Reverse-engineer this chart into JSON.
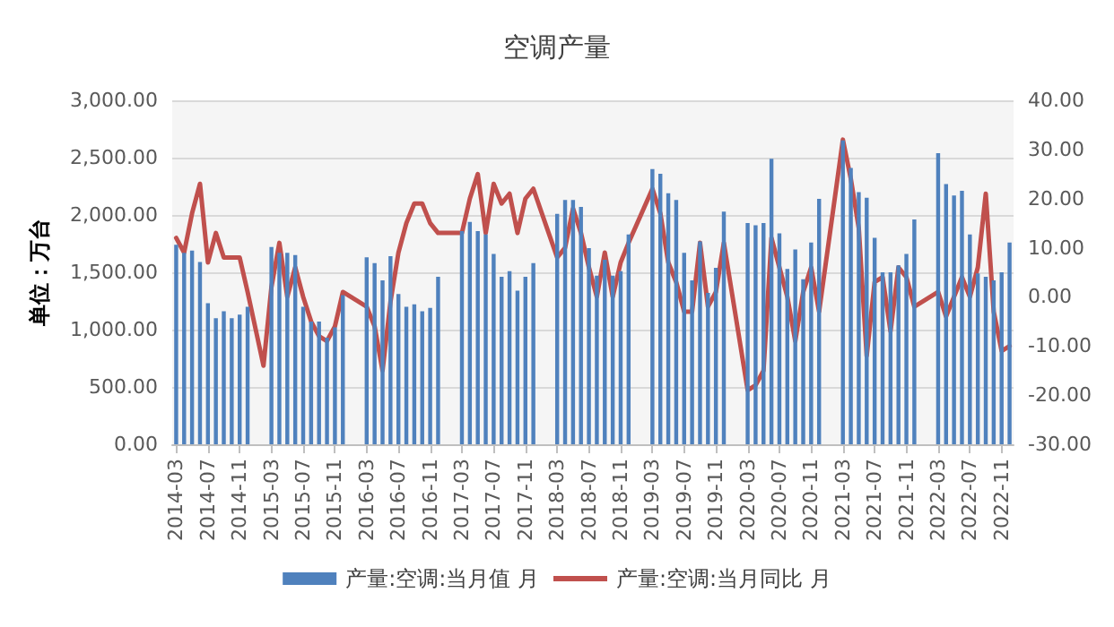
{
  "chart_data": {
    "type": "bar",
    "title": "空调产量",
    "ylabel": "单位：万台",
    "categories": [
      "2014-03",
      null,
      null,
      null,
      "2014-07",
      null,
      null,
      null,
      "2014-11",
      null,
      null,
      null,
      "2015-03",
      null,
      null,
      null,
      "2015-07",
      null,
      null,
      null,
      "2015-11",
      null,
      null,
      null,
      "2016-03",
      null,
      null,
      null,
      "2016-07",
      null,
      null,
      null,
      "2016-11",
      null,
      null,
      null,
      "2017-03",
      null,
      null,
      null,
      "2017-07",
      null,
      null,
      null,
      "2017-11",
      null,
      null,
      null,
      "2018-03",
      null,
      null,
      null,
      "2018-07",
      null,
      null,
      null,
      "2018-11",
      null,
      null,
      null,
      "2019-03",
      null,
      null,
      null,
      "2019-07",
      null,
      null,
      null,
      "2019-11",
      null,
      null,
      null,
      "2020-03",
      null,
      null,
      null,
      "2020-07",
      null,
      null,
      null,
      "2020-11",
      null,
      null,
      null,
      "2021-03",
      null,
      null,
      null,
      "2021-07",
      null,
      null,
      null,
      "2021-11",
      null,
      null,
      null,
      "2022-03",
      null,
      null,
      null,
      "2022-07",
      null,
      null,
      null,
      "2022-11",
      null
    ],
    "series": [
      {
        "name": "产量:空调:当月值 月",
        "color": "#4f81bd",
        "values": [
          1740,
          1670,
          1690,
          1590,
          1230,
          1100,
          1160,
          1100,
          1130,
          1200,
          null,
          null,
          1720,
          1670,
          1670,
          1650,
          1200,
          1070,
          1070,
          930,
          1020,
          1300,
          null,
          null,
          1630,
          1580,
          1430,
          1640,
          1310,
          1200,
          1220,
          1160,
          1190,
          1460,
          null,
          null,
          1860,
          1940,
          1860,
          1830,
          1660,
          1460,
          1510,
          1340,
          1460,
          1580,
          null,
          null,
          2010,
          2130,
          2130,
          2070,
          1710,
          1470,
          1610,
          1470,
          1510,
          1830,
          null,
          null,
          2400,
          2360,
          2190,
          2130,
          1670,
          1430,
          1770,
          1320,
          1540,
          2030,
          null,
          null,
          1930,
          1910,
          1930,
          2490,
          1840,
          1530,
          1700,
          1440,
          1760,
          2140,
          null,
          null,
          2650,
          2410,
          2200,
          2150,
          1800,
          1500,
          1500,
          1560,
          1660,
          1960,
          null,
          null,
          2540,
          2270,
          2170,
          2210,
          1830,
          1490,
          1460,
          1430,
          1500,
          1760
        ]
      },
      {
        "name": "产量:空调:当月同比 月",
        "type": "line",
        "axis": "y2",
        "color": "#c0504d",
        "values": [
          12,
          9,
          17,
          23,
          7,
          13,
          8,
          8,
          8,
          1,
          null,
          -14,
          2,
          11,
          0,
          6,
          0,
          -5,
          -8,
          -9,
          -6,
          1,
          null,
          null,
          -2,
          -6,
          -15,
          -1,
          9,
          15,
          19,
          19,
          15,
          13,
          null,
          null,
          13,
          20,
          25,
          13,
          23,
          19,
          21,
          13,
          20,
          22,
          null,
          null,
          8,
          10,
          18,
          13,
          6,
          0,
          9,
          0,
          7,
          11,
          null,
          null,
          22,
          17,
          7,
          3,
          -3,
          -3,
          11,
          -2,
          1,
          11,
          null,
          null,
          -19,
          -18,
          -15,
          12,
          6,
          0,
          -9,
          1,
          6,
          -3,
          null,
          null,
          32,
          24,
          14,
          -12,
          3,
          4,
          -7,
          6,
          4,
          -2,
          null,
          null,
          1,
          -4,
          0,
          4,
          0,
          6,
          21,
          -3,
          -11,
          -10
        ]
      }
    ],
    "ylim": [
      0,
      3000
    ],
    "yticks": [
      {
        "value": 0,
        "label": "0.00"
      },
      {
        "value": 500,
        "label": "500.00"
      },
      {
        "value": 1000,
        "label": "1,000.00"
      },
      {
        "value": 1500,
        "label": "1,500.00"
      },
      {
        "value": 2000,
        "label": "2,000.00"
      },
      {
        "value": 2500,
        "label": "2,500.00"
      },
      {
        "value": 3000,
        "label": "3,000.00"
      }
    ],
    "y2lim": [
      -30,
      40
    ],
    "y2ticks": [
      {
        "value": -30,
        "label": "-30.00"
      },
      {
        "value": -20,
        "label": "-20.00"
      },
      {
        "value": -10,
        "label": "-10.00"
      },
      {
        "value": 0,
        "label": "0.00"
      },
      {
        "value": 10,
        "label": "10.00"
      },
      {
        "value": 20,
        "label": "20.00"
      },
      {
        "value": 30,
        "label": "30.00"
      },
      {
        "value": 40,
        "label": "40.00"
      }
    ],
    "grid": "y",
    "legend": "bottom",
    "marker": "none",
    "line_style": "solid"
  }
}
